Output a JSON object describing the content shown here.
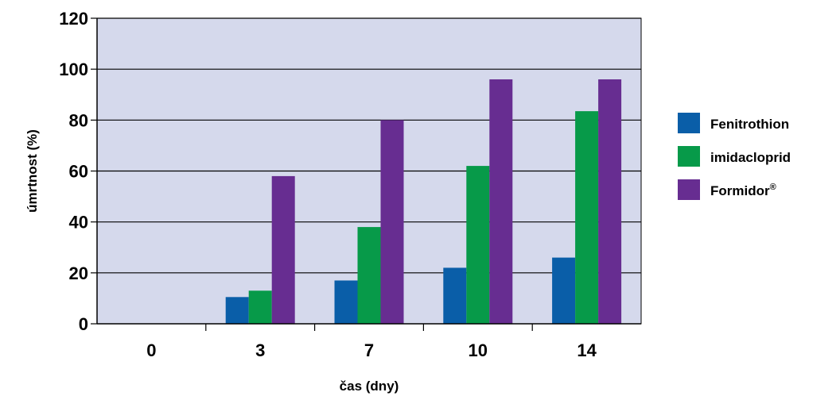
{
  "chart_data": {
    "type": "bar",
    "categories": [
      "0",
      "3",
      "7",
      "10",
      "14"
    ],
    "series": [
      {
        "name": "Fenitrothion",
        "values": [
          0,
          10.5,
          17,
          22,
          26
        ],
        "color": "#0a5ea8"
      },
      {
        "name": "imidacloprid",
        "values": [
          0,
          13,
          38,
          62,
          83.5
        ],
        "color": "#079a49"
      },
      {
        "name": "Formidor®",
        "values": [
          0,
          58,
          80,
          96,
          96
        ],
        "color": "#672d91"
      }
    ],
    "title": "",
    "xlabel": "čas (dny)",
    "ylabel": "úmrtnost (%)",
    "ylim": [
      0,
      120
    ],
    "yticks": [
      0,
      20,
      40,
      60,
      80,
      100,
      120
    ],
    "grid": true,
    "legend": "right",
    "colors": {
      "plot_background": "#d5d9ec",
      "gridline": "#000000",
      "axis": "#000000"
    }
  }
}
